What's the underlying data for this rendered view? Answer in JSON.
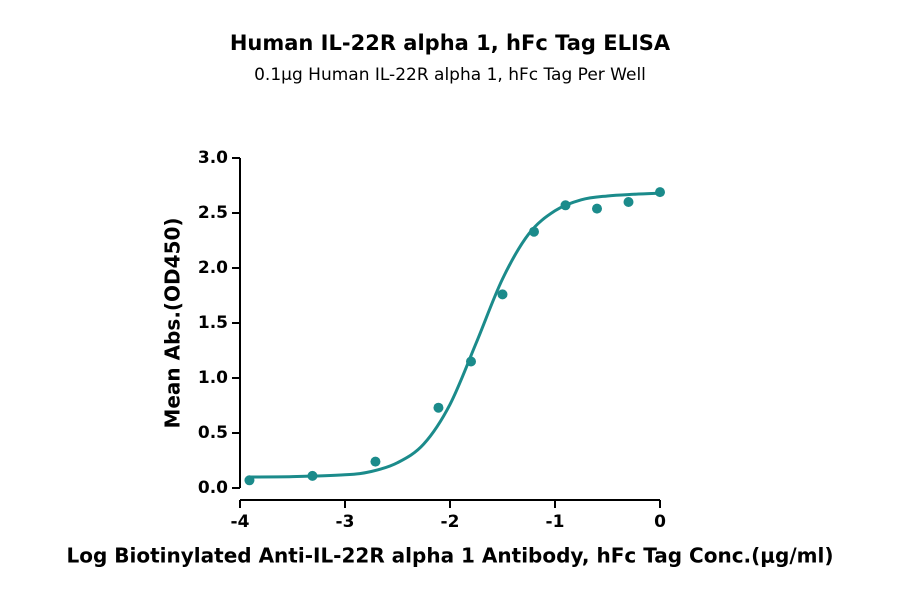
{
  "chart_data": {
    "type": "scatter",
    "title": "Human IL-22R alpha 1, hFc Tag ELISA",
    "subtitle": "0.1μg Human IL-22R alpha 1, hFc Tag Per Well",
    "x_label": "Log Biotinylated Anti-IL-22R alpha 1 Antibody, hFc Tag Conc.(μg/ml)",
    "y_label": "Mean Abs.(OD450)",
    "color": "#1b8b8b",
    "x": [
      -3.91,
      -3.31,
      -2.71,
      -2.11,
      -1.8,
      -1.5,
      -1.2,
      -0.9,
      -0.6,
      -0.3,
      0
    ],
    "values": [
      0.07,
      0.11,
      0.24,
      0.73,
      1.15,
      1.76,
      2.33,
      2.57,
      2.54,
      2.6,
      2.69
    ],
    "fit": {
      "x": [
        -3.9,
        -3.5,
        -3.0,
        -2.75,
        -2.5,
        -2.25,
        -2.0,
        -1.75,
        -1.5,
        -1.25,
        -1.0,
        -0.75,
        -0.5,
        -0.25,
        0
      ],
      "values": [
        0.1,
        0.103,
        0.12,
        0.15,
        0.23,
        0.4,
        0.76,
        1.32,
        1.9,
        2.31,
        2.52,
        2.62,
        2.655,
        2.67,
        2.68
      ]
    },
    "xlim": [
      -4,
      0
    ],
    "xticks": [
      -4,
      -3,
      -2,
      -1,
      0
    ],
    "ylim": [
      0,
      3
    ],
    "yticks": [
      {
        "value": 0,
        "label": "0.0"
      },
      {
        "value": 0.5,
        "label": "0.5"
      },
      {
        "value": 1,
        "label": "1.0"
      },
      {
        "value": 1.5,
        "label": "1.5"
      },
      {
        "value": 2,
        "label": "2.0"
      },
      {
        "value": 2.5,
        "label": "2.5"
      },
      {
        "value": 3,
        "label": "3.0"
      }
    ]
  }
}
